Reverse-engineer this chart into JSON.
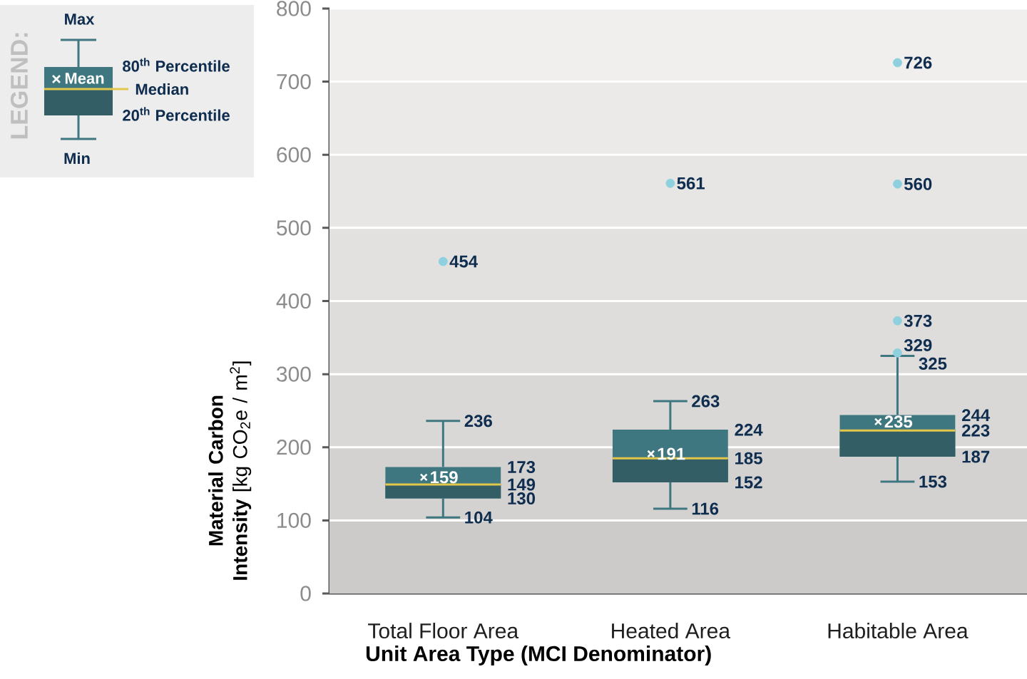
{
  "chart_data": {
    "type": "box",
    "categories": [
      "Total Floor Area",
      "Heated Area",
      "Habitable Area"
    ],
    "boxes": [
      {
        "low": 104,
        "q1": 130,
        "median": 149,
        "q3": 173,
        "high": 236,
        "mean": 159,
        "outliers": [
          454
        ]
      },
      {
        "low": 116,
        "q1": 152,
        "median": 185,
        "q3": 224,
        "high": 263,
        "mean": 191,
        "outliers": [
          561
        ]
      },
      {
        "low": 153,
        "q1": 187,
        "median": 223,
        "q3": 244,
        "high": 325,
        "mean": 235,
        "outliers": [
          329,
          373,
          560,
          726
        ]
      }
    ],
    "color": "#3f7780",
    "xlabel": "Unit Area Type (MCI Denominator)",
    "ylabel": "**Material Carbon Intensity** [kg CO$_{2}$e / m$^{2}$]",
    "ylim": [
      0,
      800
    ],
    "yticks": [
      0,
      100,
      200,
      300,
      400,
      500,
      600,
      700,
      800
    ],
    "grid": "y",
    "bands": [
      {
        "axis": "y",
        "from": 0,
        "to": 100,
        "color": "#cccbca"
      },
      {
        "axis": "y",
        "from": 100,
        "to": 200,
        "color": "#d3d2d1"
      },
      {
        "axis": "y",
        "from": 200,
        "to": 300,
        "color": "#d9d8d7"
      },
      {
        "axis": "y",
        "from": 300,
        "to": 400,
        "color": "#dedddc"
      },
      {
        "axis": "y",
        "from": 400,
        "to": 500,
        "color": "#e2e1e0"
      },
      {
        "axis": "y",
        "from": 500,
        "to": 600,
        "color": "#e7e6e5"
      },
      {
        "axis": "y",
        "from": 600,
        "to": 700,
        "color": "#ebeae9"
      },
      {
        "axis": "y",
        "from": 700,
        "to": 800,
        "color": "#f0efee"
      }
    ],
    "annotations": [
      "LEGEND:",
      "Max",
      "80$^{th}$ Percentile",
      "Median",
      "20$^{th}$ Percentile",
      "Min",
      "Mean",
      "159",
      "236",
      "173",
      "149",
      "130",
      "104",
      "454",
      "191",
      "263",
      "224",
      "185",
      "152",
      "116",
      "561",
      "235",
      "325",
      "244",
      "223",
      "187",
      "153",
      "329",
      "373",
      "560",
      "726"
    ]
  }
}
